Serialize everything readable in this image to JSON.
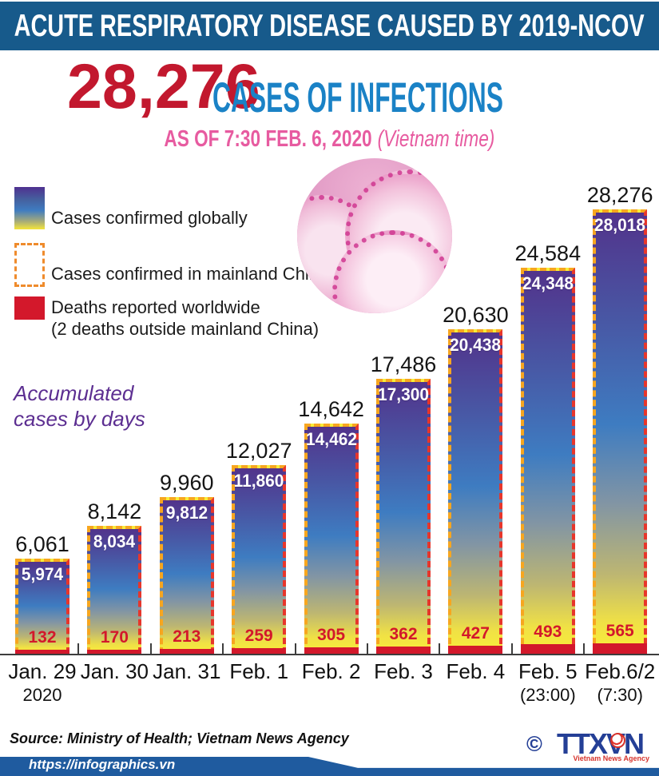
{
  "header": {
    "title": "ACUTE RESPIRATORY DISEASE CAUSED BY 2019-NCOV"
  },
  "title": {
    "count": "28,276",
    "label": "CASES OF INFECTIONS"
  },
  "subtitle": {
    "asof": "AS OF 7:30 FEB. 6, 2020",
    "timezone": "(Vietnam time)"
  },
  "legend": {
    "global": "Cases confirmed globally",
    "china": "Cases confirmed in mainland China",
    "deaths_line1": "Deaths reported worldwide",
    "deaths_line2": "(2 deaths outside mainland China)"
  },
  "note": {
    "line1": "Accumulated",
    "line2": "cases by days"
  },
  "chart_data": {
    "type": "bar",
    "title": "Accumulated cases by days",
    "categories": [
      "Jan. 29",
      "Jan. 30",
      "Jan. 31",
      "Feb. 1",
      "Feb. 2",
      "Feb. 3",
      "Feb. 4",
      "Feb. 5",
      "Feb.6/2"
    ],
    "category_sublabels": [
      "2020",
      "",
      "",
      "",
      "",
      "",
      "",
      "(23:00)",
      "(7:30)"
    ],
    "series": [
      {
        "name": "Cases confirmed globally",
        "values": [
          6061,
          8142,
          9960,
          12027,
          14642,
          17486,
          20630,
          24584,
          28276
        ]
      },
      {
        "name": "Cases confirmed in mainland China",
        "values": [
          5974,
          8034,
          9812,
          11860,
          14462,
          17300,
          20438,
          24348,
          28018
        ]
      },
      {
        "name": "Deaths reported worldwide",
        "values": [
          132,
          170,
          213,
          259,
          305,
          362,
          427,
          493,
          565
        ]
      }
    ],
    "labels": {
      "global": [
        "6,061",
        "8,142",
        "9,960",
        "12,027",
        "14,642",
        "17,486",
        "20,630",
        "24,584",
        "28,276"
      ],
      "china": [
        "5,974",
        "8,034",
        "9,812",
        "11,860",
        "14,462",
        "17,300",
        "20,438",
        "24,348",
        "28,018"
      ],
      "deaths": [
        "132",
        "170",
        "213",
        "259",
        "305",
        "362",
        "427",
        "493",
        "565"
      ]
    },
    "ylim": [
      0,
      28276
    ],
    "grid": false,
    "legend_position": "top-left"
  },
  "footer": {
    "source": "Source: Ministry of Health; Vietnam News Agency",
    "url": "https://infographics.vn",
    "copyright": "©",
    "agency_logo": "TTXVN",
    "agency_name": "Vietnam News Agency"
  },
  "colors": {
    "header_bg": "#175a8b",
    "accent_red": "#c2182e",
    "accent_blue": "#1a82c6",
    "pink": "#e75ba0",
    "purple_note": "#5c2e91",
    "dash_orange": "#f7a61f",
    "dash_red": "#e7362b",
    "death_red": "#d3182b",
    "legend_dash": "#ef8b2c",
    "ribbon_blue": "#1f5b9f",
    "logo_blue": "#243f96"
  }
}
